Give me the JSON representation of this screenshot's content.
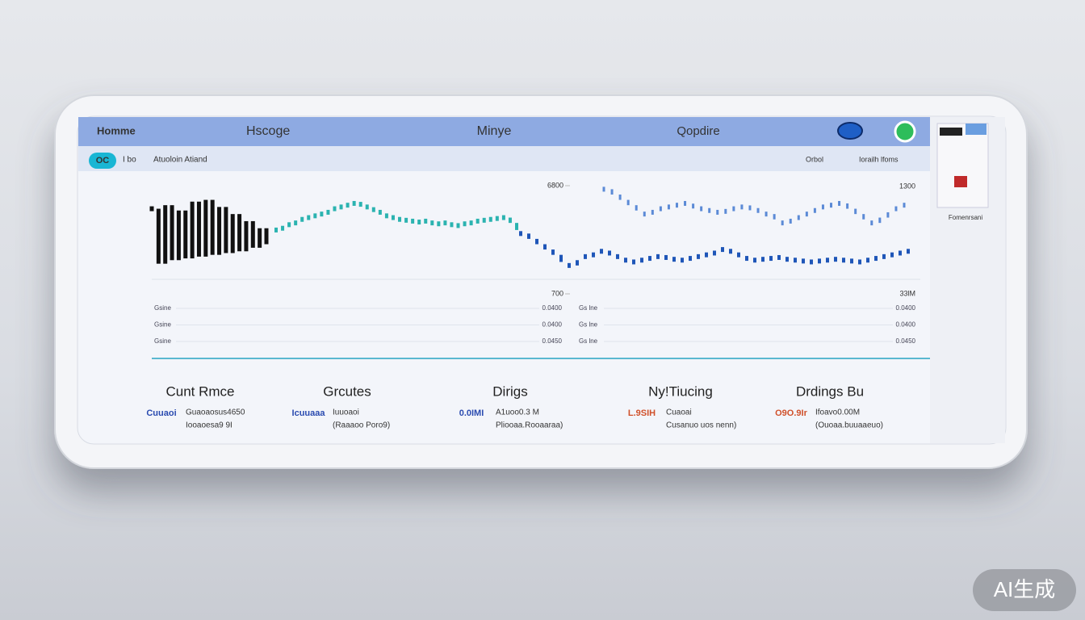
{
  "nav": {
    "items": [
      "Homme",
      "Hscoge",
      "Minye",
      "Qopdire"
    ]
  },
  "subbar": {
    "badge": "OC",
    "items": [
      "I bo",
      "Atuoloin Atiand",
      "Orbol",
      "Iorailh lfoms"
    ]
  },
  "side_panel": {
    "caption": "Fomenrsani"
  },
  "chart_data": {
    "type": "candle",
    "ylim": [
      700,
      6800
    ],
    "yticks": [
      700,
      6800
    ],
    "right_labels": [
      "1300",
      "33lM"
    ],
    "series": [
      {
        "color": "#111111",
        "values": [
          5500,
          2400,
          5700,
          2600,
          5400,
          2700,
          5900,
          2800,
          6000,
          2900,
          5600,
          3000,
          5200,
          3100,
          4800,
          3300,
          4400,
          3500
        ]
      },
      {
        "color": "#2bb3b0",
        "values": [
          4300,
          4400,
          4600,
          4700,
          4900,
          5000,
          5100,
          5200,
          5300,
          5500,
          5600,
          5700,
          5800,
          5750,
          5600,
          5450,
          5300,
          5100,
          5000,
          4900,
          4850,
          4800,
          4750,
          4800,
          4700,
          4650,
          4700,
          4600,
          4550,
          4650,
          4700,
          4800,
          4850,
          4900,
          4950,
          5000,
          4700,
          4300
        ]
      },
      {
        "color": "#1f56b8",
        "values": [
          4100,
          3800,
          3500,
          3200,
          2900,
          2500,
          2300,
          2600,
          2800,
          2900,
          3100,
          3000,
          2800,
          2600,
          2500,
          2600,
          2700,
          2800,
          2750,
          2650,
          2600,
          2700,
          2800,
          2900,
          3000,
          3200,
          3100,
          2900,
          2700,
          2600,
          2650,
          2700,
          2750,
          2650,
          2600,
          2550,
          2500,
          2550,
          2600,
          2650,
          2600,
          2550,
          2500,
          2600,
          2700,
          2800,
          2900,
          3000,
          3100
        ]
      },
      {
        "color": "#5b8ad6",
        "values": [
          6600,
          6300,
          6000,
          5700,
          5400,
          5200,
          5300,
          5500,
          5600,
          5700,
          5800,
          5650,
          5500,
          5400,
          5300,
          5350,
          5500,
          5600,
          5550,
          5400,
          5200,
          4900,
          4700,
          4800,
          5000,
          5200,
          5400,
          5600,
          5700,
          5800,
          5500,
          5200,
          4900,
          4700,
          5000,
          5300,
          5500,
          5700
        ]
      }
    ],
    "rows": [
      [
        "Gsine",
        "0.0400",
        "Gs lne",
        "0.0400"
      ],
      [
        "Gsine",
        "0.0400",
        "Gs lne",
        "0.0400"
      ],
      [
        "Gsine",
        "0.0450",
        "Gs lne",
        "0.0450"
      ]
    ]
  },
  "stats": [
    {
      "title": "Cunt Rmce",
      "value": "Cuuaoi",
      "value_color": "#2a4bb0",
      "line1": "Guaoaosus4650",
      "line2": "Iooaoesa9 9I"
    },
    {
      "title": "Grcutes",
      "value": "Icuuaaa",
      "value_color": "#2a4bb0",
      "line1": "Iuuoaoi",
      "line2": "(Raaaoo Poro9)"
    },
    {
      "title": "Dirigs",
      "value": "0.0IMI",
      "value_color": "#2a4bb0",
      "line1": "A1uoo0.3 M",
      "line2": "Pliooaa.Rooaaraa)"
    },
    {
      "title": "Ny!Tiucing",
      "value": "L.9SIH",
      "value_color": "#d0502a",
      "line1": "Cuaoai",
      "line2": "Cusanuo uos nenn)"
    },
    {
      "title": "Drdings Bu",
      "value": "O9O.9Ir",
      "value_color": "#d0502a",
      "line1": "Ifoavo0.00M",
      "line2": "(Ouoaa.buuaaeuo)"
    }
  ],
  "watermark": "AI生成"
}
